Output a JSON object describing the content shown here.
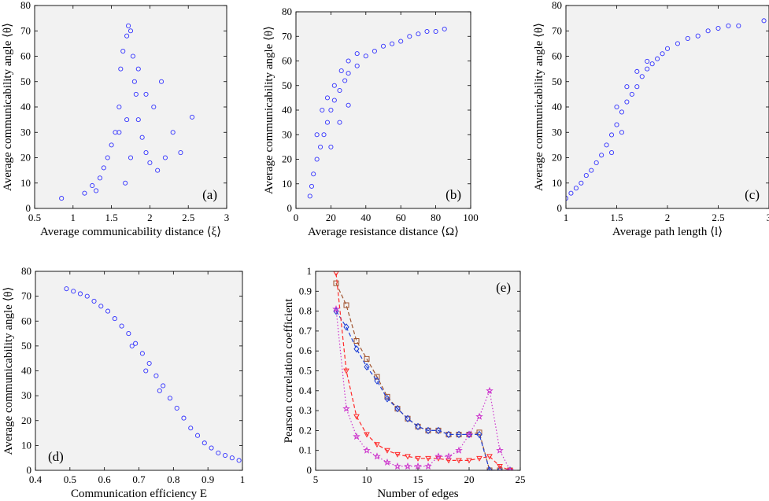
{
  "colors": {
    "plot_background": "#f2f2f2",
    "scatter_marker": "#3333ff",
    "series_square": "#a0522d",
    "series_diamond": "#1f3fd6",
    "series_triangle": "#ff2a2a",
    "series_star": "#cc33cc"
  },
  "chart_data": [
    {
      "panel": "(a)",
      "type": "scatter",
      "xlabel": "Average communicability distance ⟨ξ⟩",
      "ylabel": "Average communicability angle ⟨θ⟩",
      "xlim": [
        0.5,
        3
      ],
      "ylim": [
        0,
        80
      ],
      "xticks": [
        "0.5",
        "1",
        "1.5",
        "2",
        "2.5",
        "3"
      ],
      "yticks": [
        "0",
        "10",
        "20",
        "30",
        "40",
        "50",
        "60",
        "70",
        "80"
      ],
      "marker": "open-circle",
      "points": [
        [
          0.85,
          4
        ],
        [
          1.15,
          6
        ],
        [
          1.25,
          9
        ],
        [
          1.3,
          7
        ],
        [
          1.35,
          12
        ],
        [
          1.4,
          16
        ],
        [
          1.45,
          20
        ],
        [
          1.5,
          25
        ],
        [
          1.55,
          30
        ],
        [
          1.6,
          40
        ],
        [
          1.62,
          55
        ],
        [
          1.65,
          62
        ],
        [
          1.7,
          68
        ],
        [
          1.72,
          72
        ],
        [
          1.75,
          70
        ],
        [
          1.78,
          60
        ],
        [
          1.8,
          50
        ],
        [
          1.82,
          45
        ],
        [
          1.85,
          35
        ],
        [
          1.9,
          28
        ],
        [
          1.95,
          22
        ],
        [
          2.0,
          18
        ],
        [
          2.1,
          15
        ],
        [
          2.2,
          20
        ],
        [
          2.3,
          30
        ],
        [
          2.4,
          22
        ],
        [
          2.55,
          36
        ],
        [
          1.68,
          10
        ],
        [
          1.75,
          20
        ],
        [
          1.85,
          55
        ],
        [
          1.95,
          45
        ],
        [
          2.05,
          40
        ],
        [
          2.15,
          50
        ],
        [
          1.6,
          30
        ],
        [
          1.7,
          35
        ]
      ]
    },
    {
      "panel": "(b)",
      "type": "scatter",
      "xlabel": "Average resistance distance ⟨Ω⟩",
      "ylabel": "Average communicability angle ⟨θ⟩",
      "xlim": [
        0,
        100
      ],
      "ylim": [
        0,
        80
      ],
      "xticks": [
        "0",
        "20",
        "40",
        "60",
        "80",
        "100"
      ],
      "yticks": [
        "0",
        "10",
        "20",
        "30",
        "40",
        "50",
        "60",
        "70",
        "80"
      ],
      "marker": "open-circle",
      "points": [
        [
          8,
          5
        ],
        [
          9,
          9
        ],
        [
          10,
          14
        ],
        [
          12,
          20
        ],
        [
          14,
          25
        ],
        [
          16,
          30
        ],
        [
          18,
          35
        ],
        [
          20,
          40
        ],
        [
          22,
          44
        ],
        [
          25,
          48
        ],
        [
          28,
          52
        ],
        [
          30,
          55
        ],
        [
          35,
          58
        ],
        [
          40,
          62
        ],
        [
          45,
          64
        ],
        [
          50,
          66
        ],
        [
          55,
          67
        ],
        [
          60,
          68
        ],
        [
          65,
          70
        ],
        [
          70,
          71
        ],
        [
          75,
          72
        ],
        [
          80,
          72
        ],
        [
          85,
          73
        ],
        [
          12,
          30
        ],
        [
          15,
          40
        ],
        [
          18,
          45
        ],
        [
          22,
          50
        ],
        [
          26,
          56
        ],
        [
          30,
          60
        ],
        [
          35,
          63
        ],
        [
          20,
          25
        ],
        [
          25,
          35
        ],
        [
          30,
          42
        ]
      ]
    },
    {
      "panel": "(c)",
      "type": "scatter",
      "xlabel": "Average path length ⟨l⟩",
      "ylabel": "Average communicability angle ⟨θ⟩",
      "xlim": [
        1,
        3
      ],
      "ylim": [
        0,
        80
      ],
      "xticks": [
        "1",
        "1.5",
        "2",
        "2.5",
        "3"
      ],
      "yticks": [
        "0",
        "10",
        "20",
        "30",
        "40",
        "50",
        "60",
        "70",
        "80"
      ],
      "marker": "open-circle",
      "points": [
        [
          1.0,
          4
        ],
        [
          1.05,
          6
        ],
        [
          1.1,
          8
        ],
        [
          1.15,
          10
        ],
        [
          1.2,
          13
        ],
        [
          1.25,
          15
        ],
        [
          1.3,
          18
        ],
        [
          1.35,
          21
        ],
        [
          1.4,
          25
        ],
        [
          1.45,
          29
        ],
        [
          1.5,
          33
        ],
        [
          1.55,
          38
        ],
        [
          1.6,
          42
        ],
        [
          1.65,
          45
        ],
        [
          1.7,
          48
        ],
        [
          1.75,
          52
        ],
        [
          1.8,
          55
        ],
        [
          1.85,
          57
        ],
        [
          1.9,
          59
        ],
        [
          1.95,
          61
        ],
        [
          2.0,
          63
        ],
        [
          2.1,
          65
        ],
        [
          2.2,
          67
        ],
        [
          2.3,
          68
        ],
        [
          2.4,
          70
        ],
        [
          2.5,
          71
        ],
        [
          2.6,
          72
        ],
        [
          2.7,
          72
        ],
        [
          2.95,
          74
        ],
        [
          1.5,
          40
        ],
        [
          1.6,
          48
        ],
        [
          1.7,
          54
        ],
        [
          1.8,
          58
        ],
        [
          1.45,
          22
        ],
        [
          1.55,
          30
        ]
      ]
    },
    {
      "panel": "(d)",
      "type": "scatter",
      "xlabel": "Communication efficiency E",
      "ylabel": "Average communicability angle ⟨θ⟩",
      "xlim": [
        0.4,
        1
      ],
      "ylim": [
        0,
        80
      ],
      "xticks": [
        "0.4",
        "0.5",
        "0.6",
        "0.7",
        "0.8",
        "0.9",
        "1"
      ],
      "yticks": [
        "0",
        "10",
        "20",
        "30",
        "40",
        "50",
        "60",
        "70",
        "80"
      ],
      "marker": "open-circle",
      "points": [
        [
          0.49,
          73
        ],
        [
          0.51,
          72
        ],
        [
          0.53,
          71
        ],
        [
          0.55,
          70
        ],
        [
          0.57,
          68
        ],
        [
          0.59,
          66
        ],
        [
          0.61,
          64
        ],
        [
          0.63,
          61
        ],
        [
          0.65,
          58
        ],
        [
          0.67,
          55
        ],
        [
          0.69,
          51
        ],
        [
          0.71,
          47
        ],
        [
          0.73,
          43
        ],
        [
          0.75,
          38
        ],
        [
          0.77,
          34
        ],
        [
          0.79,
          29
        ],
        [
          0.81,
          25
        ],
        [
          0.83,
          21
        ],
        [
          0.85,
          17
        ],
        [
          0.87,
          14
        ],
        [
          0.89,
          11
        ],
        [
          0.91,
          9
        ],
        [
          0.93,
          7
        ],
        [
          0.95,
          6
        ],
        [
          0.97,
          5
        ],
        [
          0.99,
          4
        ],
        [
          0.68,
          50
        ],
        [
          0.72,
          40
        ],
        [
          0.76,
          32
        ]
      ]
    },
    {
      "panel": "(e)",
      "type": "line",
      "xlabel": "Number of edges",
      "ylabel": "Pearson correlation coefficient",
      "xlim": [
        5,
        25
      ],
      "ylim": [
        0,
        1
      ],
      "xticks": [
        "5",
        "10",
        "15",
        "20",
        "25"
      ],
      "yticks": [
        "0",
        "0.1",
        "0.2",
        "0.3",
        "0.4",
        "0.5",
        "0.6",
        "0.7",
        "0.8",
        "0.9",
        "1"
      ],
      "x": [
        7,
        8,
        9,
        10,
        11,
        12,
        13,
        14,
        15,
        16,
        17,
        18,
        19,
        20,
        21,
        22,
        23,
        24
      ],
      "series": [
        {
          "marker": "square",
          "line": "dashed",
          "values": [
            0.94,
            0.83,
            0.65,
            0.56,
            0.47,
            0.37,
            0.31,
            0.26,
            0.22,
            0.2,
            0.2,
            0.18,
            0.18,
            0.18,
            0.19,
            0.0,
            0.0,
            0.0
          ]
        },
        {
          "marker": "diamond",
          "line": "dashed",
          "values": [
            0.8,
            0.72,
            0.61,
            0.52,
            0.45,
            0.36,
            0.31,
            0.26,
            0.22,
            0.2,
            0.2,
            0.18,
            0.18,
            0.18,
            0.18,
            0.0,
            0.0,
            0.0
          ]
        },
        {
          "marker": "triangle-down",
          "line": "dashed",
          "values": [
            0.99,
            0.5,
            0.27,
            0.18,
            0.13,
            0.1,
            0.08,
            0.07,
            0.06,
            0.06,
            0.06,
            0.05,
            0.05,
            0.05,
            0.06,
            0.07,
            0.02,
            0.0
          ]
        },
        {
          "marker": "star",
          "line": "dotted",
          "values": [
            0.81,
            0.31,
            0.17,
            0.1,
            0.07,
            0.04,
            0.02,
            0.02,
            0.02,
            0.02,
            0.07,
            0.07,
            0.1,
            0.18,
            0.27,
            0.4,
            0.1,
            0.0
          ]
        }
      ]
    }
  ]
}
